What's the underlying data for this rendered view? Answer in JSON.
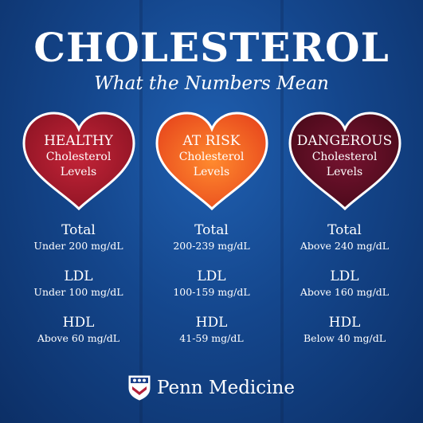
{
  "title": "CHOLESTEROL",
  "subtitle": "What the Numbers Mean",
  "colors": {
    "background": "#14468c",
    "healthy": "#a81c2e",
    "at_risk": "#f25a1f",
    "dangerous": "#5e0d22",
    "text": "#ffffff"
  },
  "columns": [
    {
      "heart_title": "HEALTHY",
      "heart_line1": "Cholesterol",
      "heart_line2": "Levels",
      "total_label": "Total",
      "total_value": "Under 200 mg/dL",
      "ldl_label": "LDL",
      "ldl_value": "Under 100 mg/dL",
      "hdl_label": "HDL",
      "hdl_value": "Above 60 mg/dL"
    },
    {
      "heart_title": "AT RISK",
      "heart_line1": "Cholesterol",
      "heart_line2": "Levels",
      "total_label": "Total",
      "total_value": "200-239 mg/dL",
      "ldl_label": "LDL",
      "ldl_value": "100-159 mg/dL",
      "hdl_label": "HDL",
      "hdl_value": "41-59 mg/dL"
    },
    {
      "heart_title": "DANGEROUS",
      "heart_line1": "Cholesterol",
      "heart_line2": "Levels",
      "total_label": "Total",
      "total_value": "Above 240 mg/dL",
      "ldl_label": "LDL",
      "ldl_value": "Above 160 mg/dL",
      "hdl_label": "HDL",
      "hdl_value": "Below 40 mg/dL"
    }
  ],
  "footer": {
    "brand": "Penn Medicine",
    "logo_icon": "penn-shield-icon"
  }
}
